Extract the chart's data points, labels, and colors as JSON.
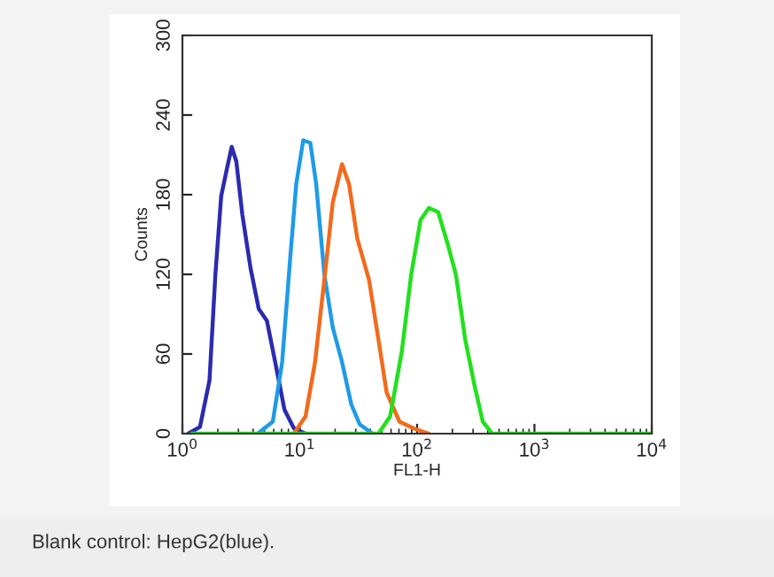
{
  "chart_data": {
    "type": "line",
    "xlabel": "FL1-H",
    "ylabel": "Counts",
    "log": "x",
    "grid": false,
    "legend": false,
    "marker": "none",
    "line_style": "solid",
    "xlim": [
      1,
      10000
    ],
    "xticks": [
      {
        "value": 1,
        "label": "10$^{0}$"
      },
      {
        "value": 10,
        "label": "10$^{1}$"
      },
      {
        "value": 100,
        "label": "10$^{2}$"
      },
      {
        "value": 1000,
        "label": "10$^{3}$"
      },
      {
        "value": 10000,
        "label": "10$^{4}$"
      }
    ],
    "ylim": [
      0,
      300
    ],
    "yticks": [
      0,
      60,
      120,
      180,
      240,
      300
    ],
    "annotations": [
      "Blank control: HepG2(blue)."
    ],
    "series": [
      {
        "color": "#2b2bb0",
        "x": [
          1.12,
          1.41,
          1.7,
          1.91,
          2.14,
          2.4,
          2.63,
          2.88,
          3.24,
          3.8,
          4.47,
          5.25,
          6.17,
          7.41,
          8.91,
          11.2
        ],
        "values": [
          0,
          5,
          40,
          120,
          179,
          200,
          216,
          205,
          165,
          125,
          94,
          85,
          54,
          18,
          4,
          0
        ]
      },
      {
        "color": "#1e9be8",
        "x": [
          4.37,
          5.89,
          7.08,
          8.32,
          9.33,
          10.7,
          12.3,
          13.8,
          16.2,
          19.1,
          22.9,
          27.5,
          32.4,
          41.7
        ],
        "values": [
          0,
          9,
          54,
          134,
          188,
          221,
          219,
          188,
          120,
          80,
          54,
          22,
          7,
          0
        ]
      },
      {
        "color": "#f26a1b",
        "x": [
          8.91,
          11.2,
          13.5,
          16.2,
          19.1,
          22.9,
          26.3,
          30.9,
          38.9,
          46.8,
          55,
          70.8,
          93.3,
          126
        ],
        "values": [
          0,
          13,
          54,
          116,
          174,
          203,
          188,
          147,
          116,
          71,
          31,
          9,
          4,
          0
        ]
      },
      {
        "color": "#22e01e",
        "x": [
          1.2,
          46.8,
          58.9,
          74.1,
          89.1,
          107,
          126,
          151,
          182,
          214,
          257,
          309,
          363,
          437,
          10000
        ],
        "values": [
          0,
          0,
          13,
          62,
          120,
          161,
          170,
          167,
          143,
          120,
          71,
          36,
          9,
          0,
          0
        ]
      }
    ]
  }
}
